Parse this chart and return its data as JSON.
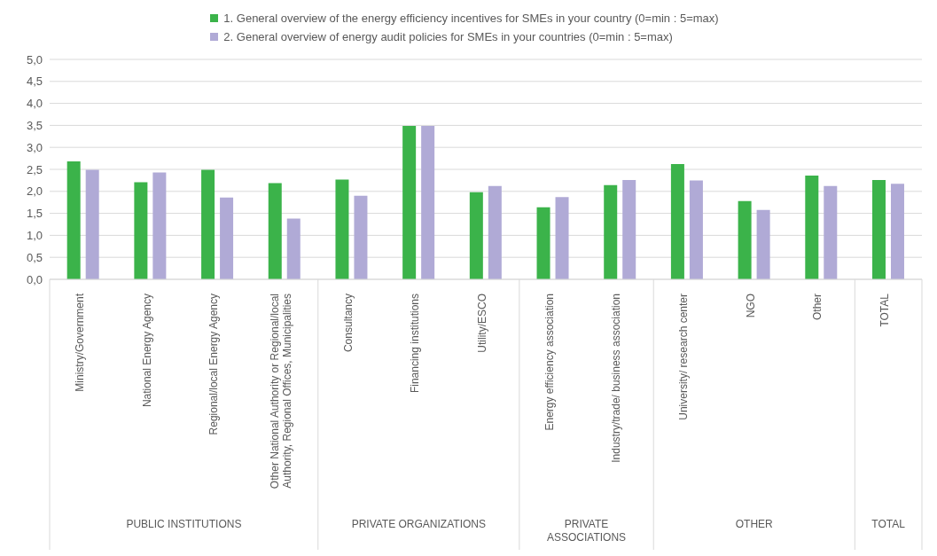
{
  "chart_data": {
    "type": "bar",
    "categories": [
      "Ministry/Government",
      "National Energy Agency",
      "Regional/local Energy Agency",
      "Other National Authority or Regional/local Authority, Regional Offices, Municipalities",
      "Consultancy",
      "Financing institutions",
      "Utility/ESCO",
      "Energy efficiency association",
      "Industry/trade/ business association",
      "University/ research center",
      "NGO",
      "Other",
      "TOTAL"
    ],
    "series": [
      {
        "name": "1. General overview of the energy efficiency incentives for SMEs in your country (0=min : 5=max)",
        "color": "#3bb34a",
        "values": [
          2.68,
          2.21,
          2.49,
          2.19,
          2.27,
          3.49,
          1.98,
          1.64,
          2.14,
          2.62,
          1.78,
          2.36,
          2.26
        ]
      },
      {
        "name": "2. General overview of energy audit policies for SMEs in your countries (0=min : 5=max)",
        "color": "#b0aad6",
        "values": [
          2.49,
          2.43,
          1.86,
          1.38,
          1.9,
          3.49,
          2.12,
          1.87,
          2.26,
          2.25,
          1.58,
          2.12,
          2.17
        ]
      }
    ],
    "ylim": [
      0,
      5
    ],
    "yticks": [
      {
        "value": 0,
        "label": "0,0"
      },
      {
        "value": 0.5,
        "label": "0,5"
      },
      {
        "value": 1,
        "label": "1,0"
      },
      {
        "value": 1.5,
        "label": "1,5"
      },
      {
        "value": 2,
        "label": "2,0"
      },
      {
        "value": 2.5,
        "label": "2,5"
      },
      {
        "value": 3,
        "label": "3,0"
      },
      {
        "value": 3.5,
        "label": "3,5"
      },
      {
        "value": 4,
        "label": "4,0"
      },
      {
        "value": 4.5,
        "label": "4,5"
      },
      {
        "value": 5,
        "label": "5,0"
      }
    ],
    "grid": "y",
    "legend": "top",
    "annotations": [
      "PUBLIC INSTITUTIONS",
      "PRIVATE ORGANIZATIONS",
      "PRIVATE ASSOCIATIONS",
      "OTHER",
      "TOTAL"
    ]
  }
}
